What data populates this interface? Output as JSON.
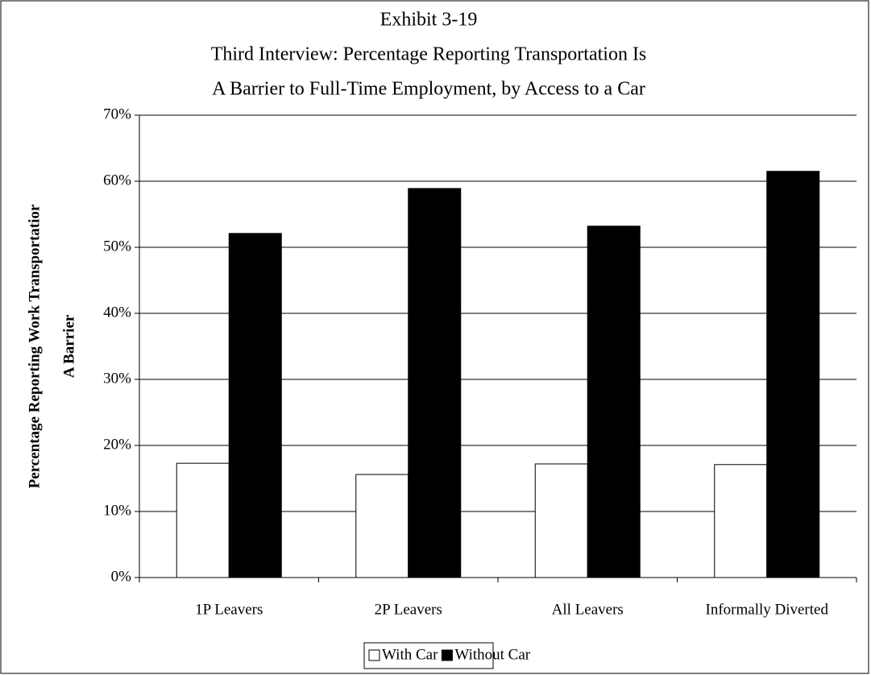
{
  "chart_data": {
    "type": "bar",
    "title": [
      "Exhibit 3-19",
      "Third Interview:  Percentage Reporting Transportation Is",
      "A Barrier to Full-Time Employment, by Access to a Car"
    ],
    "y_label": [
      "Percentage Reporting Work Transportatior",
      "A Barrier"
    ],
    "categories": [
      "1P Leavers",
      "2P Leavers",
      "All Leavers",
      "Informally Diverted"
    ],
    "series": [
      {
        "name": "With Car",
        "color": "#ffffff",
        "values": [
          17.3,
          15.6,
          17.2,
          17.1
        ]
      },
      {
        "name": "Without Car",
        "color": "#000000",
        "values": [
          52.1,
          58.9,
          53.2,
          61.5
        ]
      }
    ],
    "ylim": [
      0,
      70
    ],
    "yticks": [
      {
        "value": 0,
        "label": "0%"
      },
      {
        "value": 10,
        "label": "10%"
      },
      {
        "value": 20,
        "label": "20%"
      },
      {
        "value": 30,
        "label": "30%"
      },
      {
        "value": 40,
        "label": "40%"
      },
      {
        "value": 50,
        "label": "50%"
      },
      {
        "value": 60,
        "label": "60%"
      },
      {
        "value": 70,
        "label": "70%"
      }
    ],
    "grid": true,
    "legend": "bottom"
  }
}
